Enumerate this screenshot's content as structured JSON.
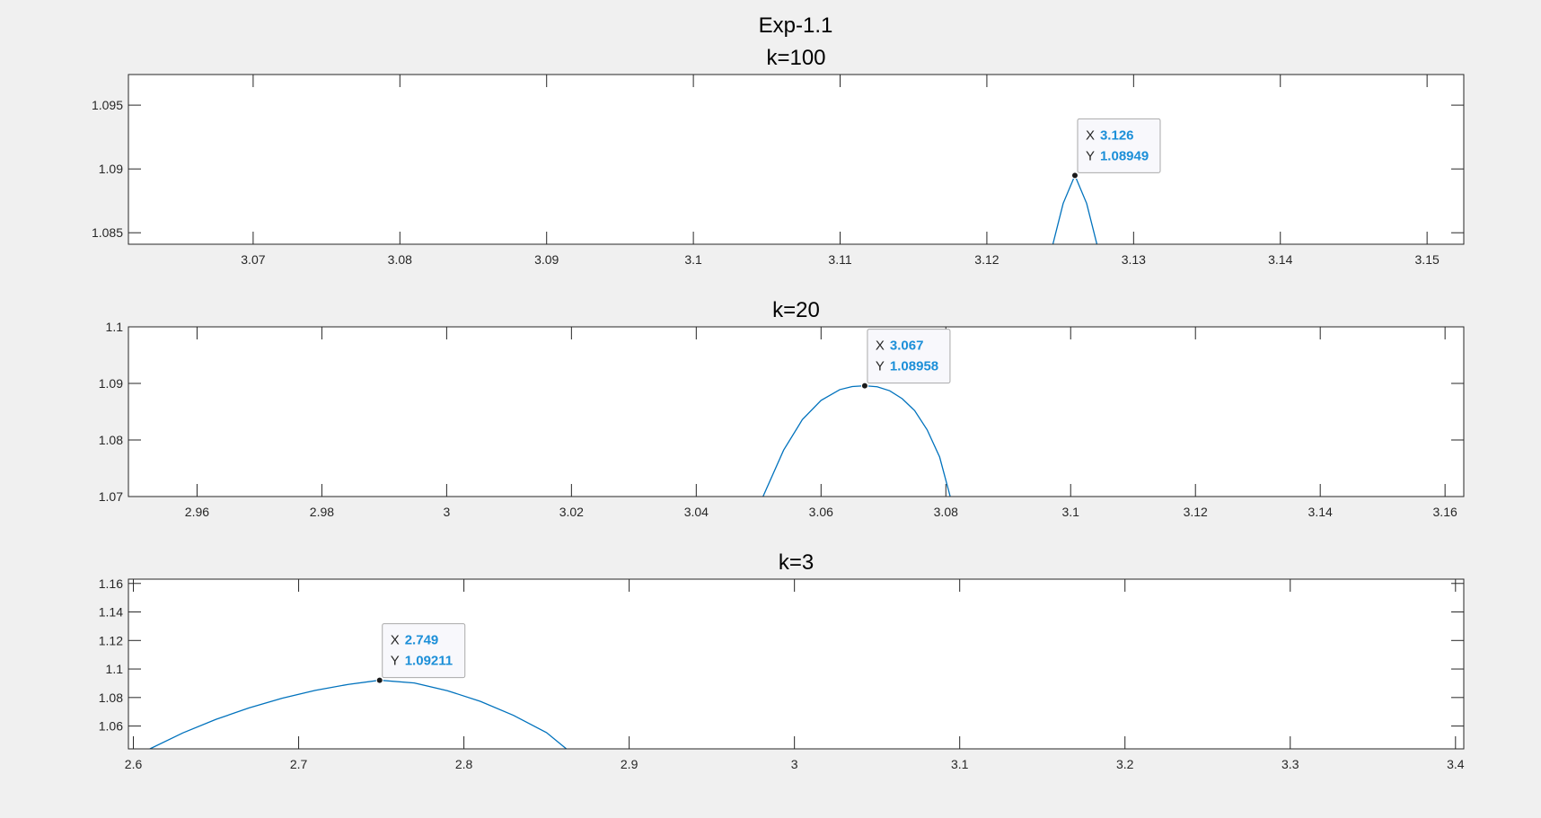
{
  "figure": {
    "title": "Exp-1.1",
    "background": "#f0f0f0",
    "line_color": "#0072bd",
    "datatip_value_color": "#1c8fd8"
  },
  "chart_data": [
    {
      "type": "line",
      "title": "k=100",
      "xlabel": "",
      "ylabel": "",
      "xlim": [
        3.0615,
        3.1525
      ],
      "ylim": [
        1.0841,
        1.0974
      ],
      "xticks": [
        3.07,
        3.08,
        3.09,
        3.1,
        3.11,
        3.12,
        3.13,
        3.14,
        3.15
      ],
      "xtick_labels": [
        "3.07",
        "3.08",
        "3.09",
        "3.1",
        "3.11",
        "3.12",
        "3.13",
        "3.14",
        "3.15"
      ],
      "yticks": [
        1.085,
        1.09,
        1.095
      ],
      "ytick_labels": [
        "1.085",
        "1.09",
        "1.095"
      ],
      "grid": false,
      "series": [
        {
          "x": [
            3.1245,
            3.1252,
            3.126,
            3.1268,
            3.1275
          ],
          "y": [
            1.0841,
            1.0873,
            1.08949,
            1.0873,
            1.0841
          ]
        }
      ],
      "datatip": {
        "x_label": "X",
        "y_label": "Y",
        "x": "3.126",
        "y": "1.08949"
      }
    },
    {
      "type": "line",
      "title": "k=20",
      "xlabel": "",
      "ylabel": "",
      "xlim": [
        2.949,
        3.163
      ],
      "ylim": [
        1.07,
        1.1
      ],
      "xticks": [
        2.96,
        2.98,
        3,
        3.02,
        3.04,
        3.06,
        3.08,
        3.1,
        3.12,
        3.14,
        3.16
      ],
      "xtick_labels": [
        "2.96",
        "2.98",
        "3",
        "3.02",
        "3.04",
        "3.06",
        "3.08",
        "3.1",
        "3.12",
        "3.14",
        "3.16"
      ],
      "yticks": [
        1.07,
        1.08,
        1.09,
        1.1
      ],
      "ytick_labels": [
        "1.07",
        "1.08",
        "1.09",
        "1.1"
      ],
      "grid": false,
      "series": [
        {
          "x": [
            3.0507,
            3.054,
            3.057,
            3.06,
            3.063,
            3.065,
            3.067,
            3.069,
            3.071,
            3.073,
            3.075,
            3.077,
            3.079,
            3.0807
          ],
          "y": [
            1.07,
            1.0782,
            1.0836,
            1.087,
            1.0889,
            1.08945,
            1.08958,
            1.0894,
            1.0887,
            1.0873,
            1.0852,
            1.0818,
            1.077,
            1.07
          ]
        }
      ],
      "datatip": {
        "x_label": "X",
        "y_label": "Y",
        "x": "3.067",
        "y": "1.08958"
      }
    },
    {
      "type": "line",
      "title": "k=3",
      "xlabel": "",
      "ylabel": "",
      "xlim": [
        2.597,
        3.405
      ],
      "ylim": [
        1.044,
        1.163
      ],
      "xticks": [
        2.6,
        2.7,
        2.8,
        2.9,
        3,
        3.1,
        3.2,
        3.3,
        3.4
      ],
      "xtick_labels": [
        "2.6",
        "2.7",
        "2.8",
        "2.9",
        "3",
        "3.1",
        "3.2",
        "3.3",
        "3.4"
      ],
      "yticks": [
        1.06,
        1.08,
        1.1,
        1.12,
        1.14,
        1.16
      ],
      "ytick_labels": [
        "1.06",
        "1.08",
        "1.1",
        "1.12",
        "1.14",
        "1.16"
      ],
      "grid": false,
      "series": [
        {
          "x": [
            2.61,
            2.63,
            2.65,
            2.67,
            2.69,
            2.71,
            2.73,
            2.749,
            2.77,
            2.79,
            2.81,
            2.83,
            2.85,
            2.862
          ],
          "y": [
            1.044,
            1.0552,
            1.0647,
            1.0727,
            1.0795,
            1.085,
            1.0892,
            1.09211,
            1.0902,
            1.0848,
            1.0773,
            1.0675,
            1.0554,
            1.044
          ]
        }
      ],
      "datatip": {
        "x_label": "X",
        "y_label": "Y",
        "x": "2.749",
        "y": "1.09211"
      }
    }
  ]
}
